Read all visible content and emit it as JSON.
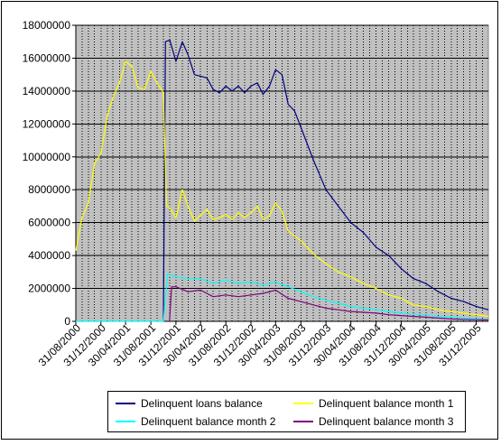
{
  "chart_data": {
    "type": "line",
    "title": "",
    "xlabel": "",
    "ylabel": "",
    "ylim": [
      0,
      18000000
    ],
    "y_ticks": [
      "0",
      "2000000",
      "4000000",
      "6000000",
      "8000000",
      "10000000",
      "12000000",
      "14000000",
      "16000000",
      "18000000"
    ],
    "x_ticks": [
      "31/08/2000",
      "31/12/2000",
      "30/04/2001",
      "31/08/2001",
      "31/12/2001",
      "30/04/2002",
      "31/08/2002",
      "31/12/2002",
      "30/04/2003",
      "31/08/2003",
      "31/12/2003",
      "30/04/2004",
      "31/08/2004",
      "31/12/2004",
      "30/04/2005",
      "31/08/2005",
      "31/12/2005"
    ],
    "x_tick_dates": [
      "2000-08-31",
      "2000-12-31",
      "2001-04-30",
      "2001-08-31",
      "2001-12-31",
      "2002-04-30",
      "2002-08-31",
      "2002-12-31",
      "2003-04-30",
      "2003-08-31",
      "2003-12-31",
      "2004-04-30",
      "2004-08-31",
      "2004-12-31",
      "2005-04-30",
      "2005-08-31",
      "2005-12-31"
    ],
    "x_range": [
      "2000-08-31",
      "2006-02-28"
    ],
    "grid": "horizontal solid, vertical dotted",
    "plot_background": "#c0c0c0",
    "legend_position": "bottom",
    "series": [
      {
        "name": "Delinquent loans balance",
        "color": "#000080",
        "points": [
          [
            "2001-10-31",
            0
          ],
          [
            "2001-11-10",
            17000000
          ],
          [
            "2001-12-01",
            17100000
          ],
          [
            "2001-12-31",
            15800000
          ],
          [
            "2002-01-31",
            17000000
          ],
          [
            "2002-02-28",
            16200000
          ],
          [
            "2002-03-31",
            15000000
          ],
          [
            "2002-05-31",
            14800000
          ],
          [
            "2002-06-30",
            14100000
          ],
          [
            "2002-07-31",
            13900000
          ],
          [
            "2002-08-31",
            14300000
          ],
          [
            "2002-09-30",
            14000000
          ],
          [
            "2002-10-31",
            14300000
          ],
          [
            "2002-11-30",
            13900000
          ],
          [
            "2002-12-31",
            14300000
          ],
          [
            "2003-01-31",
            14500000
          ],
          [
            "2003-02-28",
            13800000
          ],
          [
            "2003-03-31",
            14300000
          ],
          [
            "2003-04-30",
            15300000
          ],
          [
            "2003-05-31",
            15000000
          ],
          [
            "2003-06-30",
            13200000
          ],
          [
            "2003-07-31",
            12800000
          ],
          [
            "2003-08-31",
            11800000
          ],
          [
            "2003-10-31",
            9800000
          ],
          [
            "2003-12-31",
            8000000
          ],
          [
            "2004-02-29",
            7000000
          ],
          [
            "2004-04-30",
            6000000
          ],
          [
            "2004-06-30",
            5400000
          ],
          [
            "2004-08-31",
            4500000
          ],
          [
            "2004-10-31",
            4000000
          ],
          [
            "2004-12-31",
            3200000
          ],
          [
            "2005-02-28",
            2600000
          ],
          [
            "2005-04-30",
            2300000
          ],
          [
            "2005-06-30",
            1800000
          ],
          [
            "2005-08-31",
            1400000
          ],
          [
            "2005-10-31",
            1200000
          ],
          [
            "2005-12-31",
            900000
          ],
          [
            "2006-02-28",
            700000
          ]
        ]
      },
      {
        "name": "Delinquent balance month 1",
        "color": "#ffff00",
        "points": [
          [
            "2000-08-31",
            4300000
          ],
          [
            "2000-09-30",
            6300000
          ],
          [
            "2000-10-31",
            7200000
          ],
          [
            "2000-11-30",
            9600000
          ],
          [
            "2000-12-31",
            10200000
          ],
          [
            "2001-01-31",
            12500000
          ],
          [
            "2001-02-28",
            13600000
          ],
          [
            "2001-03-31",
            14500000
          ],
          [
            "2001-04-30",
            15800000
          ],
          [
            "2001-05-31",
            15500000
          ],
          [
            "2001-06-30",
            14200000
          ],
          [
            "2001-07-31",
            14100000
          ],
          [
            "2001-08-31",
            15200000
          ],
          [
            "2001-09-30",
            14500000
          ],
          [
            "2001-10-31",
            13900000
          ],
          [
            "2001-11-15",
            7000000
          ],
          [
            "2001-12-01",
            6900000
          ],
          [
            "2001-12-31",
            6300000
          ],
          [
            "2002-01-31",
            8000000
          ],
          [
            "2002-02-28",
            7000000
          ],
          [
            "2002-03-31",
            6100000
          ],
          [
            "2002-05-31",
            6800000
          ],
          [
            "2002-06-30",
            6200000
          ],
          [
            "2002-07-31",
            6300000
          ],
          [
            "2002-08-31",
            6500000
          ],
          [
            "2002-09-30",
            6200000
          ],
          [
            "2002-10-31",
            6600000
          ],
          [
            "2002-11-30",
            6300000
          ],
          [
            "2002-12-31",
            6600000
          ],
          [
            "2003-01-31",
            7000000
          ],
          [
            "2003-02-28",
            6200000
          ],
          [
            "2003-03-31",
            6400000
          ],
          [
            "2003-04-30",
            7200000
          ],
          [
            "2003-05-31",
            6700000
          ],
          [
            "2003-06-30",
            5500000
          ],
          [
            "2003-08-31",
            4900000
          ],
          [
            "2003-10-31",
            4100000
          ],
          [
            "2003-12-31",
            3500000
          ],
          [
            "2004-02-29",
            3000000
          ],
          [
            "2004-04-30",
            2700000
          ],
          [
            "2004-06-30",
            2300000
          ],
          [
            "2004-08-31",
            2000000
          ],
          [
            "2004-10-31",
            1600000
          ],
          [
            "2004-12-31",
            1400000
          ],
          [
            "2005-02-28",
            1000000
          ],
          [
            "2005-04-30",
            900000
          ],
          [
            "2005-06-30",
            700000
          ],
          [
            "2005-08-31",
            600000
          ],
          [
            "2005-10-31",
            500000
          ],
          [
            "2005-12-31",
            400000
          ],
          [
            "2006-02-28",
            300000
          ]
        ]
      },
      {
        "name": "Delinquent balance month 2",
        "color": "#00ffff",
        "points": [
          [
            "2000-08-31",
            0
          ],
          [
            "2000-10-31",
            0
          ],
          [
            "2000-12-31",
            0
          ],
          [
            "2001-02-28",
            0
          ],
          [
            "2001-04-30",
            0
          ],
          [
            "2001-06-30",
            0
          ],
          [
            "2001-08-31",
            0
          ],
          [
            "2001-10-31",
            0
          ],
          [
            "2001-11-20",
            2900000
          ],
          [
            "2001-12-31",
            2700000
          ],
          [
            "2002-02-28",
            2600000
          ],
          [
            "2002-04-30",
            2600000
          ],
          [
            "2002-06-30",
            2300000
          ],
          [
            "2002-08-31",
            2500000
          ],
          [
            "2002-10-31",
            2300000
          ],
          [
            "2002-12-31",
            2400000
          ],
          [
            "2003-02-28",
            2200000
          ],
          [
            "2003-04-30",
            2400000
          ],
          [
            "2003-06-30",
            2100000
          ],
          [
            "2003-08-31",
            1800000
          ],
          [
            "2003-10-31",
            1500000
          ],
          [
            "2003-12-31",
            1300000
          ],
          [
            "2004-02-29",
            1100000
          ],
          [
            "2004-04-30",
            900000
          ],
          [
            "2004-06-30",
            800000
          ],
          [
            "2004-08-31",
            700000
          ],
          [
            "2004-10-31",
            600000
          ],
          [
            "2004-12-31",
            500000
          ],
          [
            "2005-02-28",
            450000
          ],
          [
            "2005-04-30",
            400000
          ],
          [
            "2005-06-30",
            300000
          ],
          [
            "2005-08-31",
            250000
          ],
          [
            "2005-10-31",
            200000
          ],
          [
            "2005-12-31",
            150000
          ],
          [
            "2006-02-28",
            100000
          ]
        ]
      },
      {
        "name": "Delinquent balance month 3",
        "color": "#800080",
        "points": [
          [
            "2001-11-30",
            0
          ],
          [
            "2001-12-10",
            2100000
          ],
          [
            "2001-12-31",
            2100000
          ],
          [
            "2002-02-28",
            1800000
          ],
          [
            "2002-04-30",
            1900000
          ],
          [
            "2002-06-30",
            1500000
          ],
          [
            "2002-08-31",
            1600000
          ],
          [
            "2002-10-31",
            1500000
          ],
          [
            "2002-12-31",
            1600000
          ],
          [
            "2003-02-28",
            1700000
          ],
          [
            "2003-04-30",
            1900000
          ],
          [
            "2003-06-30",
            1400000
          ],
          [
            "2003-08-31",
            1200000
          ],
          [
            "2003-10-31",
            1000000
          ],
          [
            "2003-12-31",
            800000
          ],
          [
            "2004-02-29",
            700000
          ],
          [
            "2004-04-30",
            600000
          ],
          [
            "2004-06-30",
            550000
          ],
          [
            "2004-08-31",
            500000
          ],
          [
            "2004-10-31",
            400000
          ],
          [
            "2004-12-31",
            350000
          ],
          [
            "2005-02-28",
            300000
          ],
          [
            "2005-04-30",
            250000
          ],
          [
            "2005-06-30",
            200000
          ],
          [
            "2005-08-31",
            150000
          ],
          [
            "2005-10-31",
            120000
          ],
          [
            "2005-12-31",
            100000
          ],
          [
            "2006-02-28",
            80000
          ]
        ]
      }
    ]
  }
}
